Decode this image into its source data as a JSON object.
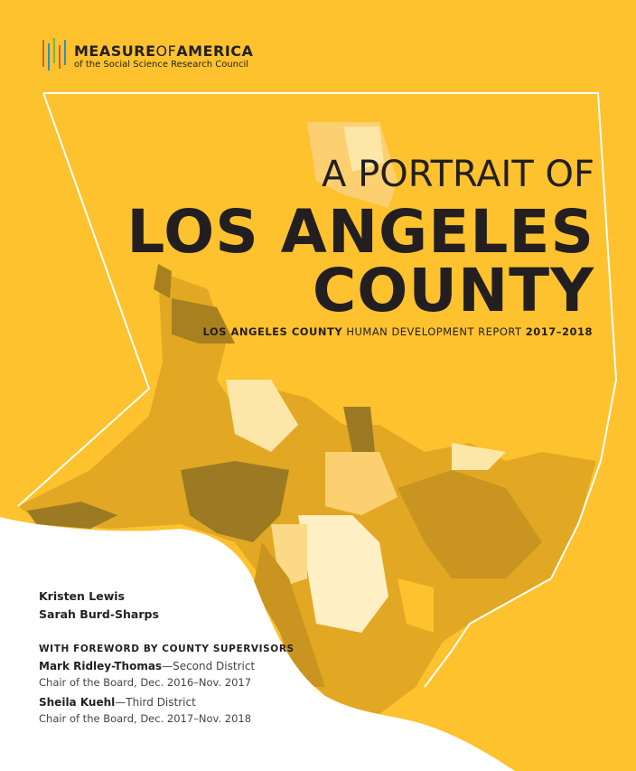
{
  "logo": {
    "name_part_1": "MEASURE",
    "name_part_2": "OF",
    "name_part_3": "AMERICA",
    "tagline": "of the Social Science Research Council"
  },
  "title": {
    "line_1": "A PORTRAIT OF",
    "line_2": "LOS ANGELES",
    "line_3": "COUNTY"
  },
  "subtitle": {
    "part_1": "LOS ANGELES COUNTY",
    "part_2": " HUMAN DEVELOPMENT REPORT ",
    "part_3": "2017–2018"
  },
  "authors": [
    "Kristen Lewis",
    "Sarah Burd-Sharps"
  ],
  "foreword": {
    "heading": "WITH FOREWORD BY COUNTY SUPERVISORS",
    "supervisors": [
      {
        "name": "Mark Ridley-Thomas",
        "district": "—Second District",
        "role": "Chair of the Board, Dec. 2016–Nov. 2017"
      },
      {
        "name": "Sheila Kuehl",
        "district": "—Third District",
        "role": "Chair of the Board, Dec. 2017–Nov. 2018"
      }
    ]
  }
}
